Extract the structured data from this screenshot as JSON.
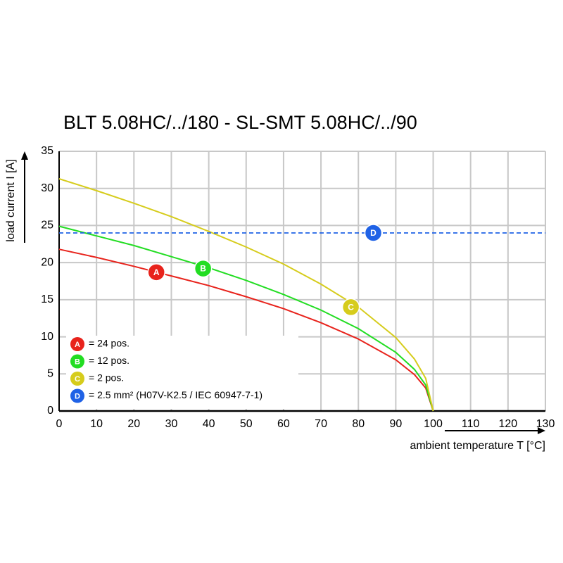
{
  "chart_data": {
    "type": "line",
    "title": "BLT 5.08HC/../180 - SL-SMT 5.08HC/../90",
    "x_label": "ambient temperature T [°C]",
    "y_label": "load current I [A]",
    "xlim": [
      0,
      130
    ],
    "xticks": [
      0,
      10,
      20,
      30,
      40,
      50,
      60,
      70,
      80,
      90,
      100,
      110,
      120,
      130
    ],
    "ylim": [
      0,
      35
    ],
    "yticks": [
      0,
      5,
      10,
      15,
      20,
      25,
      30,
      35
    ],
    "grid": true,
    "legend": "lower left",
    "series": [
      {
        "name": "= 24 pos.",
        "label": "A",
        "color": "#e8231c",
        "label_x": 26,
        "label_y": 18.7,
        "x": [
          0,
          10,
          20,
          30,
          40,
          50,
          60,
          70,
          80,
          90,
          95,
          98,
          100
        ],
        "values": [
          21.8,
          20.7,
          19.5,
          18.2,
          16.9,
          15.4,
          13.8,
          11.9,
          9.7,
          6.9,
          4.9,
          3.1,
          0
        ]
      },
      {
        "name": "= 12 pos.",
        "label": "B",
        "color": "#22dd22",
        "label_x": 38.5,
        "label_y": 19.2,
        "x": [
          0,
          10,
          20,
          30,
          40,
          50,
          60,
          70,
          80,
          90,
          95,
          98,
          100
        ],
        "values": [
          24.9,
          23.6,
          22.3,
          20.8,
          19.3,
          17.6,
          15.7,
          13.6,
          11.1,
          7.9,
          5.6,
          3.5,
          0
        ]
      },
      {
        "name": "= 2 pos.",
        "label": "C",
        "color": "#d6cc1c",
        "label_x": 78,
        "label_y": 14,
        "x": [
          0,
          10,
          20,
          30,
          40,
          50,
          60,
          70,
          80,
          90,
          95,
          98,
          100
        ],
        "values": [
          31.3,
          29.7,
          28.0,
          26.2,
          24.2,
          22.1,
          19.8,
          17.1,
          14.0,
          9.9,
          7.0,
          4.4,
          0
        ]
      },
      {
        "name": "= 2.5 mm² (H07V-K2.5 / IEC 60947-7-1)",
        "label": "D",
        "color": "#1f62e6",
        "dashed": true,
        "label_x": 84,
        "label_y": 24,
        "x": [
          0,
          130
        ],
        "values": [
          24,
          24
        ]
      }
    ]
  }
}
